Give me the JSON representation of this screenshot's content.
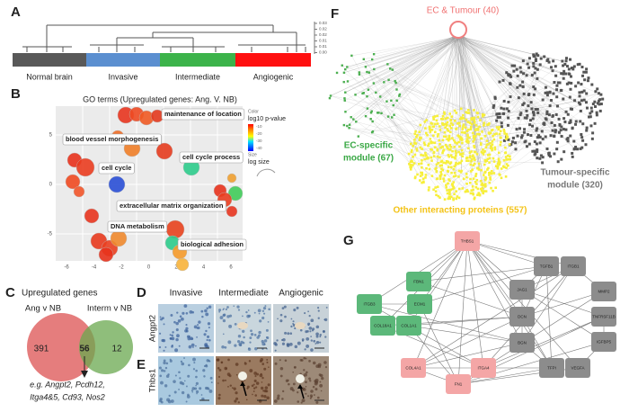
{
  "panels": {
    "A": {
      "label": "A",
      "groups": [
        "Normal brain",
        "Invasive",
        "Intermediate",
        "Angiogenic"
      ],
      "axis_ticks": [
        "0.03",
        "0.02",
        "0.02",
        "0.01",
        "0.01",
        "0.00"
      ]
    },
    "B": {
      "label": "B",
      "title": "GO terms (Upregulated genes: Ang. V. NB)",
      "terms": [
        "maintenance of location",
        "blood vessel morphogenesis",
        "cell cycle process",
        "cell cycle",
        "extracellular matrix organization",
        "DNA metabolism",
        "biological adhesion"
      ],
      "legend_color_title": "Color",
      "legend_color": "log10 p-value",
      "legend_color_ticks": [
        "-10",
        "-20",
        "-30",
        "-40"
      ],
      "legend_size_title": "Size",
      "legend_size": "log size",
      "x_ticks": [
        "-6",
        "-4",
        "-2",
        "0",
        "2",
        "4",
        "6"
      ],
      "y_ticks": [
        "5",
        "0",
        "-5"
      ]
    },
    "C": {
      "label": "C",
      "title": "Upregulated genes",
      "set1": "Ang v NB",
      "set2": "Interm v NB",
      "only1": 391,
      "both": 56,
      "only2": 12,
      "examples": [
        "e.g. Angpt2, Pcdh12,",
        "Itga4&5, Cd93, Nos2"
      ]
    },
    "D": {
      "label": "D",
      "columns": [
        "Invasive",
        "Intermediate",
        "Angiogenic"
      ],
      "row": "Angpt2"
    },
    "E": {
      "label": "E",
      "row": "Thbs1"
    },
    "F": {
      "label": "F",
      "hub": "EC & Tumour (40)",
      "ec_module": [
        "EC-specific",
        "module (67)"
      ],
      "tumour_module": [
        "Tumour-specific",
        "module (320)"
      ],
      "other": "Other interacting proteins (557)"
    },
    "G": {
      "label": "G",
      "pink_nodes": [
        "THBS1",
        "COL4A1",
        "FN1",
        "ITGA4"
      ],
      "green_nodes": [
        "FBN1",
        "ITGB3",
        "ECM1",
        "COL18A1",
        "COL1A1"
      ],
      "gray_nodes": [
        "TGFB1",
        "ITGB1",
        "JAG1",
        "MMP2",
        "DCN",
        "TNFRSF11B",
        "BGN",
        "IGFBP5",
        "TFPI",
        "VEGFA"
      ]
    }
  }
}
